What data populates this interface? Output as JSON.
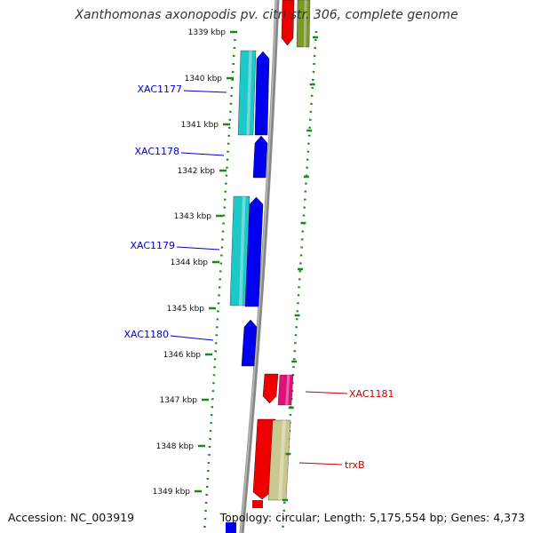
{
  "title": "Xanthomonas axonopodis pv. citri str. 306, complete genome",
  "footer": {
    "accession": "Accession: NC_003919",
    "summary": "Topology: circular; Length: 5,175,554 bp; Genes: 4,373"
  },
  "ticks": [
    "1339 kbp",
    "1340 kbp",
    "1341 kbp",
    "1342 kbp",
    "1343 kbp",
    "1344 kbp",
    "1345 kbp",
    "1346 kbp",
    "1347 kbp",
    "1348 kbp",
    "1349 kbp"
  ],
  "gene_labels": [
    {
      "text": "XAC1177",
      "side": "left"
    },
    {
      "text": "XAC1178",
      "side": "left"
    },
    {
      "text": "XAC1179",
      "side": "left"
    },
    {
      "text": "XAC1180",
      "side": "left"
    },
    {
      "text": "XAC1181",
      "side": "right"
    },
    {
      "text": "trxB",
      "side": "right"
    }
  ],
  "colors": {
    "forward_cds": "#0000ee",
    "forward_feature": "#1cc8c8",
    "reverse_cds": "#ee0000",
    "reverse_feature_pink": "#e0107a",
    "reverse_feature_tan": "#c8c890",
    "olive": "#7a9a2a",
    "backbone": "#888888",
    "tick_green": "#1a8a1a",
    "left_label": "#0000cc",
    "right_label": "#cc0000"
  }
}
